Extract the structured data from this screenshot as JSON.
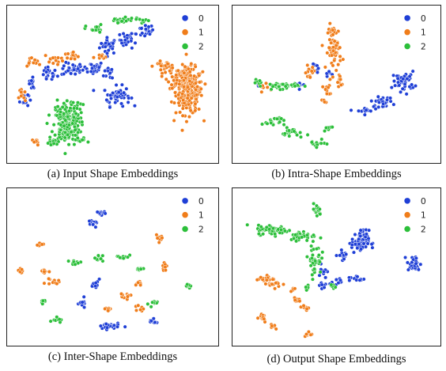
{
  "figure": {
    "colors": {
      "0": "#1f3fd6",
      "1": "#f07d1a",
      "2": "#2cbf3a"
    }
  },
  "chart_data": [
    {
      "type": "scatter",
      "caption": "(a) Input Shape Embeddings",
      "xlim": [
        0,
        100
      ],
      "ylim": [
        0,
        100
      ],
      "legend": {
        "placement": "top-right",
        "entries": [
          "0",
          "1",
          "2"
        ]
      },
      "series": [
        {
          "name": "0",
          "clusters": [
            [
              48,
              76,
              4,
              5,
              28
            ],
            [
              58,
              80,
              4,
              5,
              26
            ],
            [
              66,
              86,
              4,
              4,
              20
            ],
            [
              18,
              57,
              4,
              5,
              20
            ],
            [
              30,
              60,
              5,
              4,
              28
            ],
            [
              40,
              61,
              5,
              4,
              26
            ],
            [
              49,
              58,
              3,
              5,
              14
            ],
            [
              52,
              42,
              6,
              6,
              50
            ],
            [
              6,
              40,
              2,
              5,
              12
            ],
            [
              10,
              50,
              3,
              5,
              12
            ]
          ]
        },
        {
          "name": "1",
          "clusters": [
            [
              88,
              45,
              6,
              14,
              220
            ],
            [
              84,
              54,
              6,
              6,
              60
            ],
            [
              76,
              62,
              5,
              3,
              28
            ],
            [
              10,
              65,
              4,
              3,
              12
            ],
            [
              21,
              67,
              5,
              3,
              16
            ],
            [
              30,
              69,
              4,
              3,
              12
            ],
            [
              44,
              68,
              3,
              2,
              8
            ],
            [
              5,
              42,
              1.5,
              6,
              10
            ],
            [
              12,
              11,
              2,
              2,
              8
            ]
          ]
        },
        {
          "name": "2",
          "clusters": [
            [
              27,
              22,
              6,
              12,
              170
            ],
            [
              28,
              33,
              6,
              6,
              50
            ],
            [
              41,
              87,
              4,
              3,
              16
            ],
            [
              54,
              93,
              5,
              2,
              18
            ],
            [
              64,
              93,
              4,
              2,
              10
            ],
            [
              20,
              10,
              3,
              2,
              12
            ],
            [
              34,
              12,
              3,
              2,
              10
            ]
          ]
        }
      ]
    },
    {
      "type": "scatter",
      "caption": "(b) Intra-Shape Embeddings",
      "xlim": [
        0,
        100
      ],
      "ylim": [
        0,
        100
      ],
      "legend": {
        "placement": "top-right",
        "entries": [
          "0",
          "1",
          "2"
        ]
      },
      "series": [
        {
          "name": "0",
          "clusters": [
            [
              84,
              52,
              5,
              6,
              50
            ],
            [
              73,
              38,
              5,
              3,
              30
            ],
            [
              64,
              32,
              4,
              2,
              14
            ],
            [
              10,
              51,
              3,
              2,
              8
            ],
            [
              32,
              50,
              3,
              2,
              8
            ],
            [
              40,
              60,
              2,
              3,
              6
            ],
            [
              46,
              56,
              2,
              3,
              6
            ]
          ]
        },
        {
          "name": "1",
          "clusters": [
            [
              49,
              75,
              3,
              14,
              70
            ],
            [
              45,
              45,
              2,
              6,
              14
            ],
            [
              36,
              58,
              3,
              4,
              12
            ],
            [
              52,
              52,
              2,
              4,
              10
            ],
            [
              15,
              48,
              4,
              2,
              8
            ]
          ]
        },
        {
          "name": "2",
          "clusters": [
            [
              22,
              49,
              8,
              2,
              40
            ],
            [
              18,
              25,
              5,
              3,
              20
            ],
            [
              28,
              17,
              5,
              3,
              22
            ],
            [
              40,
              10,
              4,
              2,
              14
            ],
            [
              46,
              20,
              3,
              2,
              8
            ],
            [
              10,
              52,
              2,
              2,
              6
            ]
          ]
        }
      ]
    },
    {
      "type": "scatter",
      "caption": "(c) Inter-Shape Embeddings",
      "xlim": [
        0,
        100
      ],
      "ylim": [
        0,
        100
      ],
      "legend": {
        "placement": "top-right",
        "entries": [
          "0",
          "1",
          "2"
        ]
      },
      "series": [
        {
          "name": "0",
          "clusters": [
            [
              44,
              87,
              2.5,
              1.5,
              14
            ],
            [
              40,
              79,
              2.5,
              1.5,
              12
            ],
            [
              42,
              38,
              1.5,
              3,
              14
            ],
            [
              35,
              25,
              1.5,
              3,
              12
            ],
            [
              48,
              10,
              5,
              2,
              30
            ],
            [
              70,
              13,
              2,
              1.5,
              10
            ]
          ]
        },
        {
          "name": "1",
          "clusters": [
            [
              14,
              65,
              2,
              1.5,
              8
            ],
            [
              16,
              47,
              2,
              2,
              10
            ],
            [
              5,
              48,
              1.5,
              2.5,
              8
            ],
            [
              20,
              40,
              3,
              2,
              12
            ],
            [
              73,
              69,
              1.5,
              2,
              10
            ],
            [
              76,
              50,
              1.5,
              2,
              8
            ],
            [
              56,
              30,
              2.5,
              2,
              10
            ],
            [
              48,
              22,
              2.5,
              2,
              10
            ],
            [
              63,
              39,
              2,
              1.5,
              8
            ],
            [
              64,
              22,
              1.5,
              2,
              8
            ]
          ]
        },
        {
          "name": "2",
          "clusters": [
            [
              31,
              53,
              3,
              1.5,
              10
            ],
            [
              43,
              56,
              2,
              2,
              10
            ],
            [
              55,
              57,
              3,
              1.5,
              12
            ],
            [
              88,
              37,
              3,
              1.5,
              10
            ],
            [
              15,
              27,
              2,
              1.5,
              8
            ],
            [
              22,
              15,
              2,
              2,
              8
            ],
            [
              63,
              48,
              2,
              1.5,
              8
            ],
            [
              70,
              25,
              2,
              2,
              8
            ]
          ]
        }
      ]
    },
    {
      "type": "scatter",
      "caption": "(d) Output Shape Embeddings",
      "xlim": [
        0,
        100
      ],
      "ylim": [
        0,
        100
      ],
      "legend": {
        "placement": "top-right",
        "entries": [
          "0",
          "1",
          "2"
        ]
      },
      "series": [
        {
          "name": "0",
          "clusters": [
            [
              62,
              67,
              4,
              7,
              70
            ],
            [
              89,
              52,
              3,
              5,
              35
            ],
            [
              54,
              58,
              3,
              3,
              14
            ],
            [
              43,
              48,
              2,
              5,
              14
            ],
            [
              50,
              40,
              3,
              2,
              10
            ],
            [
              60,
              42,
              4,
              2,
              12
            ],
            [
              43,
              38,
              2,
              2,
              6
            ]
          ]
        },
        {
          "name": "1",
          "clusters": [
            [
              14,
              42,
              4,
              2,
              20
            ],
            [
              20,
              38,
              4,
              2,
              14
            ],
            [
              30,
              28,
              2,
              2,
              8
            ],
            [
              12,
              16,
              3,
              3,
              14
            ],
            [
              18,
              10,
              2,
              2,
              8
            ],
            [
              36,
              5,
              3,
              2,
              10
            ],
            [
              34,
              22,
              2,
              2,
              8
            ],
            [
              28,
              35,
              1.5,
              2,
              6
            ]
          ]
        },
        {
          "name": "2",
          "clusters": [
            [
              18,
              75,
              7,
              3,
              70
            ],
            [
              33,
              71,
              6,
              3,
              40
            ],
            [
              39,
              55,
              3,
              9,
              40
            ],
            [
              40,
              88,
              2,
              4,
              16
            ],
            [
              48,
              37,
              2,
              2,
              8
            ],
            [
              35,
              36,
              2,
              2,
              6
            ]
          ]
        }
      ]
    }
  ]
}
